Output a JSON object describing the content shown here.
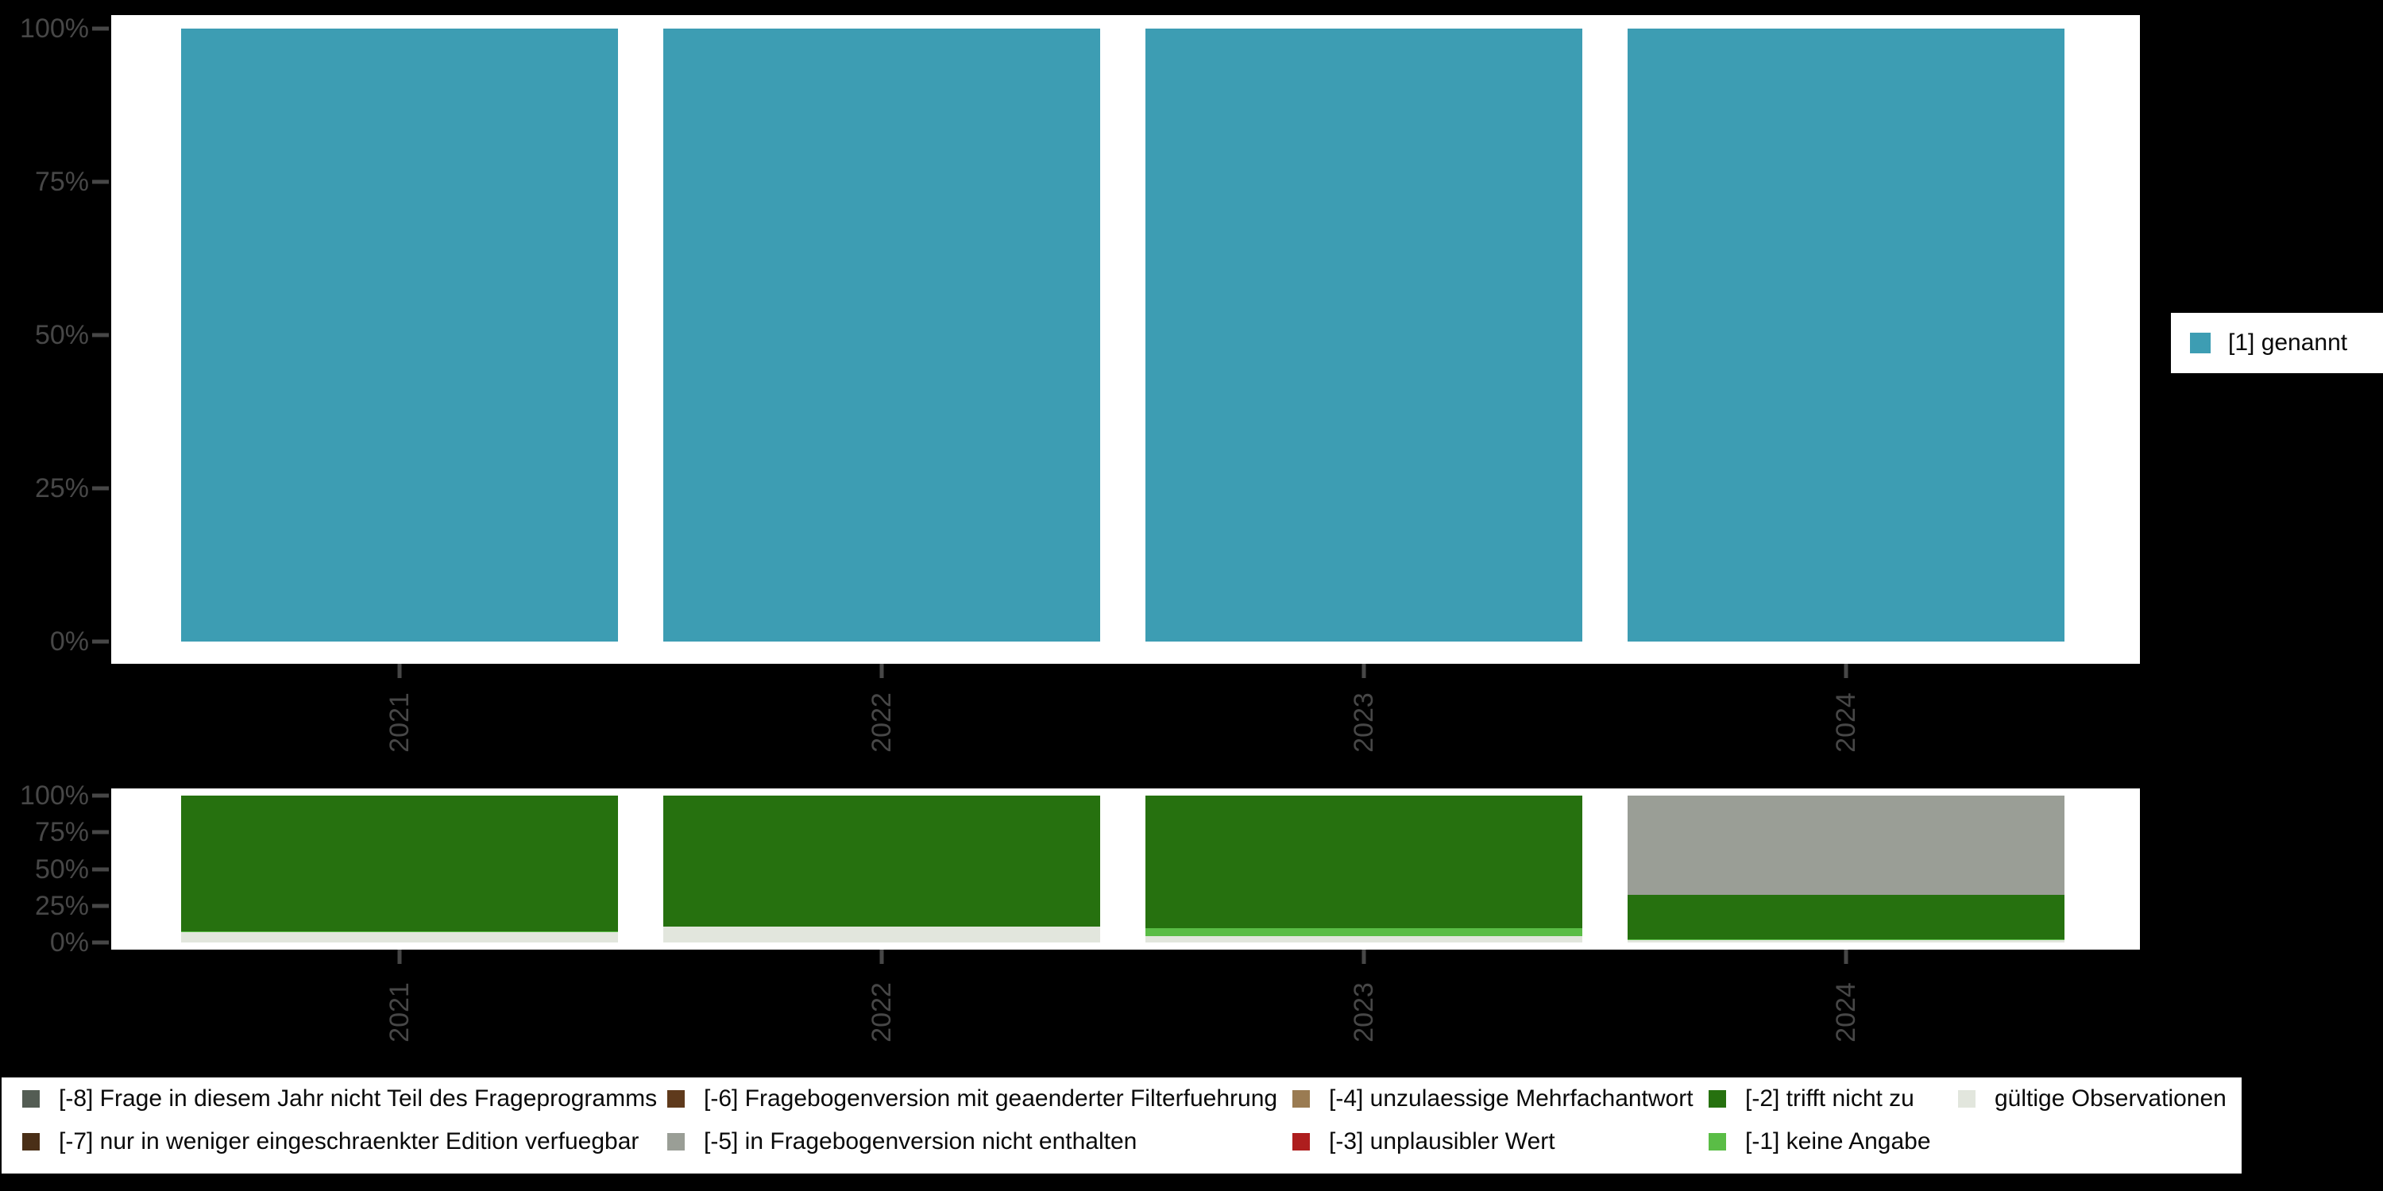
{
  "chart_data": [
    {
      "type": "bar",
      "panel": "top",
      "title": "",
      "xlabel": "",
      "ylabel": "",
      "categories": [
        "2021",
        "2022",
        "2023",
        "2024"
      ],
      "series": [
        {
          "name": "[1] genannt",
          "color": "#3D9DB3",
          "values": [
            100,
            100,
            100,
            100
          ]
        }
      ],
      "ylim": [
        0,
        100
      ],
      "y_tick_labels": [
        "100%",
        "75%",
        "50%",
        "25%",
        "0%"
      ],
      "grid": false,
      "legend_position": "right",
      "bar_orientation": "vertical"
    },
    {
      "type": "bar",
      "panel": "bottom",
      "stacked": true,
      "title": "",
      "xlabel": "",
      "ylabel": "",
      "categories": [
        "2021",
        "2022",
        "2023",
        "2024"
      ],
      "series": [
        {
          "name": "[-8] Frage in diesem Jahr nicht Teil des Frageprogramms",
          "color": "#545D54",
          "values": [
            0,
            0,
            0,
            0
          ]
        },
        {
          "name": "[-7] nur in weniger eingeschraenkter Edition verfuegbar",
          "color": "#4A2F17",
          "values": [
            0,
            0,
            0,
            0
          ]
        },
        {
          "name": "[-6] Fragebogenversion mit geaenderter Filterfuehrung",
          "color": "#5F3A1C",
          "values": [
            0,
            0,
            0,
            0
          ]
        },
        {
          "name": "[-5] in Fragebogenversion nicht enthalten",
          "color": "#9A9E96",
          "values": [
            0,
            0,
            0,
            67.5
          ]
        },
        {
          "name": "[-4] unzulaessige Mehrfachantwort",
          "color": "#9A7B52",
          "values": [
            0,
            0,
            0,
            0
          ]
        },
        {
          "name": "[-3] unplausibler Wert",
          "color": "#AE1E1E",
          "values": [
            0,
            0,
            0,
            0
          ]
        },
        {
          "name": "[-2] trifft nicht zu",
          "color": "#26710F",
          "values": [
            92.5,
            89,
            90,
            30.5
          ]
        },
        {
          "name": "[-1] keine Angabe",
          "color": "#5ABD46",
          "values": [
            0.5,
            0,
            5.5,
            0.5
          ]
        },
        {
          "name": "gültige Observationen",
          "color": "#E2E6DD",
          "values": [
            7,
            11,
            4.5,
            1.5
          ]
        }
      ],
      "ylim": [
        0,
        100
      ],
      "y_tick_labels": [
        "100%",
        "75%",
        "50%",
        "25%",
        "0%"
      ],
      "grid": false,
      "legend_position": "bottom",
      "bar_orientation": "vertical"
    }
  ],
  "axes": {
    "x_tick_labels": [
      "2021",
      "2022",
      "2023",
      "2024"
    ],
    "y_tick_labels": [
      "100%",
      "75%",
      "50%",
      "25%",
      "0%"
    ]
  },
  "legend_top": {
    "label": "[1] genannt",
    "color": "#3D9DB3"
  },
  "legend_bottom": {
    "items": [
      {
        "label": "[-8] Frage in diesem Jahr nicht Teil des Frageprogramms",
        "color": "#545D54",
        "col": 0,
        "row": 0
      },
      {
        "label": "[-7] nur in weniger eingeschraenkter Edition verfuegbar",
        "color": "#4A2F17",
        "col": 0,
        "row": 1
      },
      {
        "label": "[-6] Fragebogenversion mit geaenderter Filterfuehrung",
        "color": "#5F3A1C",
        "col": 1,
        "row": 0
      },
      {
        "label": "[-5] in Fragebogenversion nicht enthalten",
        "color": "#9A9E96",
        "col": 1,
        "row": 1
      },
      {
        "label": "[-4] unzulaessige Mehrfachantwort",
        "color": "#9A7B52",
        "col": 2,
        "row": 0
      },
      {
        "label": "[-3] unplausibler Wert",
        "color": "#AE1E1E",
        "col": 2,
        "row": 1
      },
      {
        "label": "[-2] trifft nicht zu",
        "color": "#26710F",
        "col": 3,
        "row": 0
      },
      {
        "label": "[-1] keine Angabe",
        "color": "#5ABD46",
        "col": 3,
        "row": 1
      },
      {
        "label": "gültige Observationen",
        "color": "#E2E6DD",
        "col": 4,
        "row": 0
      }
    ]
  },
  "colors": {
    "background": "#000000",
    "panel": "#FFFFFF",
    "axis_text": "#474747"
  }
}
